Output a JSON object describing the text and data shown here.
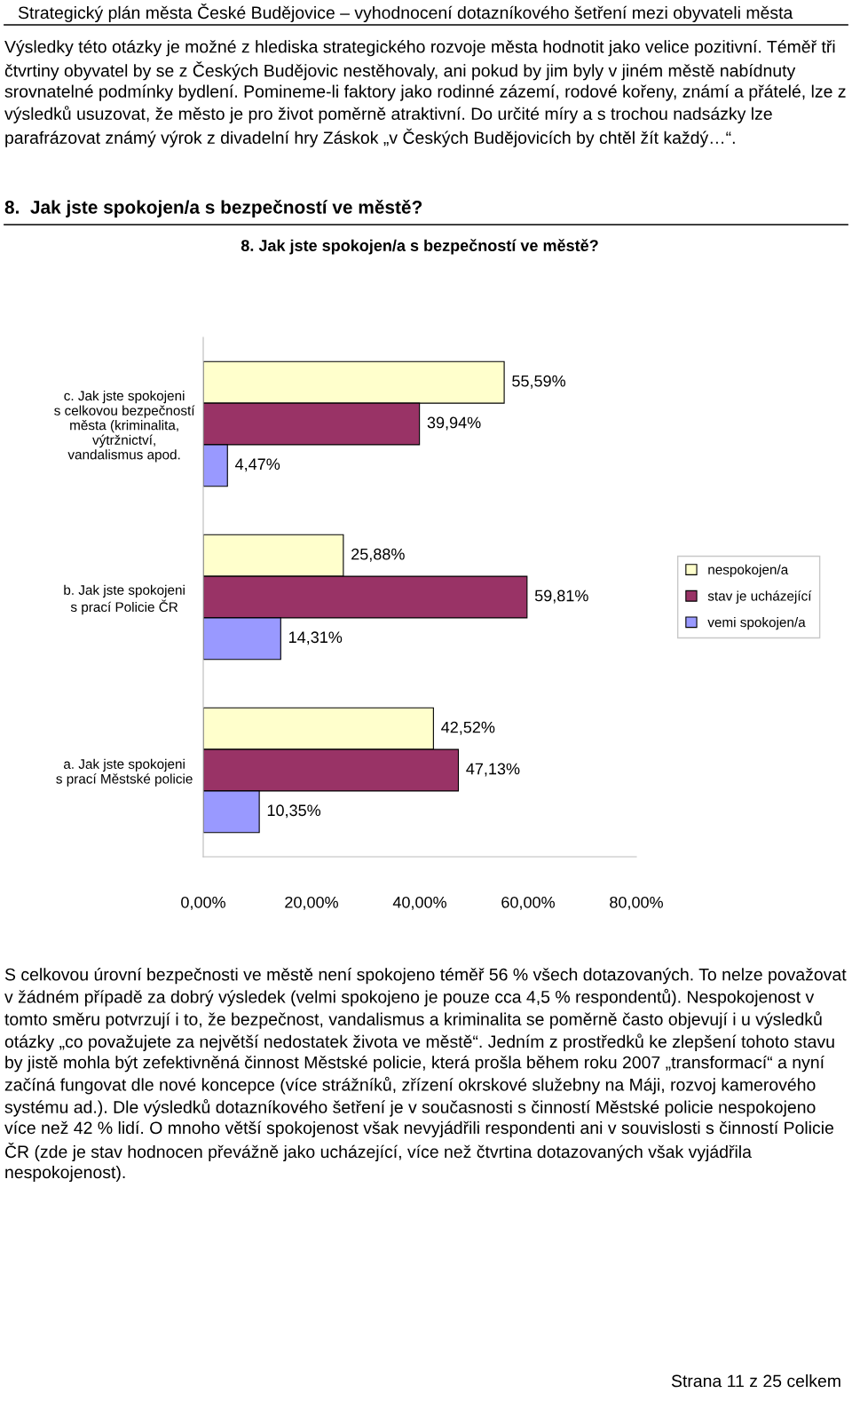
{
  "chart_data": {
    "type": "bar",
    "orientation": "horizontal",
    "title": "8. Jak jste spokojen/a s bezpečností ve městě?",
    "categories": [
      "c. Jak jste spokojeni\ns celkovou bezpečností\nměsta (kriminalita,\nvýtržnictví,\nvandalismus apod.",
      "b. Jak jste spokojeni\ns prací Policie ČR",
      "a. Jak jste spokojeni\ns prací Městské policie"
    ],
    "series": [
      {
        "name": "nespokojen/a",
        "color": "#ffffcc",
        "values": [
          55.59,
          25.88,
          42.52
        ],
        "value_labels": [
          "55,59%",
          "25,88%",
          "42,52%"
        ]
      },
      {
        "name": "stav je ucházející",
        "color": "#993366",
        "values": [
          39.94,
          59.81,
          47.13
        ],
        "value_labels": [
          "39,94%",
          "59,81%",
          "47,13%"
        ]
      },
      {
        "name": "vemi spokojen/a",
        "color": "#9999ff",
        "values": [
          4.47,
          14.31,
          10.35
        ],
        "value_labels": [
          "4,47%",
          "14,31%",
          "10,35%"
        ]
      }
    ],
    "xlim": [
      0,
      80
    ],
    "xticks": [
      {
        "value": 0,
        "label": "0,00%"
      },
      {
        "value": 20,
        "label": "20,00%"
      },
      {
        "value": 40,
        "label": "40,00%"
      },
      {
        "value": 60,
        "label": "60,00%"
      },
      {
        "value": 80,
        "label": "80,00%"
      }
    ],
    "legend": "right",
    "grid": false,
    "annotations": [
      "Strategický plán města České Budějovice – vyhodnocení dotazníkového šetření mezi obyvateli města",
      "Výsledky této otázky je možné z hlediska strategického rozvoje města hodnotit jako velice pozitivní. Téměř tři čtvrtiny obyvatel by se z Českých Budějovic nestěhovaly, ani pokud by jim byly v jiném městě nabídnuty srovnatelné podmínky bydlení. Pomineme-li faktory jako rodinné zázemí, rodové kořeny, známí a přátelé, lze z výsledků usuzovat, že město je pro život poměrně atraktivní. Do určité míry a s trochou nadsázky lze parafrázovat známý výrok z divadelní hry Záskok „v Českých Budějovicích by chtěl žít každý…“.",
      "8.  Jak jste spokojen/a s bezpečností ve městě?",
      "S celkovou úrovní bezpečnosti ve městě není spokojeno téměř 56 % všech dotazovaných. To nelze považovat v žádném případě za dobrý výsledek (velmi spokojeno je pouze cca 4,5 % respondentů). Nespokojenost v tomto směru potvrzují i to, že bezpečnost, vandalismus a kriminalita se poměrně často objevují i u výsledků otázky „co považujete za největší nedostatek života ve městě“. Jedním z prostředků ke zlepšení tohoto stavu by jistě mohla být zefektivněná činnost Městské policie, která prošla během roku 2007 „transformací“ a nyní začíná fungovat dle nové koncepce (více strážníků, zřízení okrskové služebny na Máji, rozvoj kamerového systému ad.). Dle výsledků dotazníkového šetření je v současnosti s činností Městské policie nespokojeno více než 42 % lidí. O mnoho větší spokojenost však nevyjádřili respondenti ani v souvislosti s činností Policie ČR (zde je stav hodnocen převážně jako ucházející, více než čtvrtina dotazovaných však vyjádřila nespokojenost).",
      "Strana 11 z 25 celkem"
    ]
  }
}
